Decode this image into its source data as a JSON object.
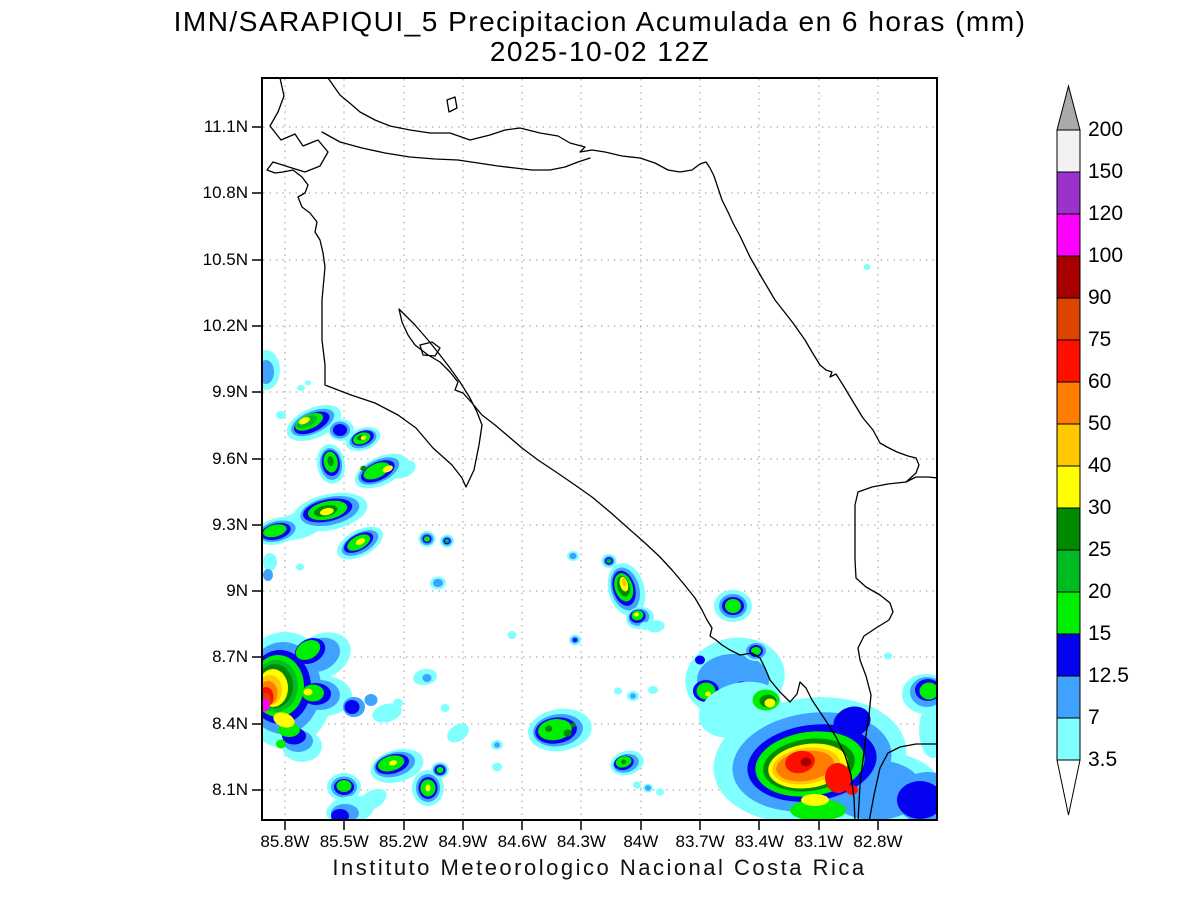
{
  "title": {
    "line1": "IMN/SARAPIQUI_5 Precipitacion Acumulada en 6 horas (mm)",
    "line2": "2025-10-02 12Z"
  },
  "footer": "Instituto Meteorologico Nacional Costa Rica",
  "axes": {
    "lat_labels": [
      "11.1N",
      "10.8N",
      "10.5N",
      "10.2N",
      "9.9N",
      "9.6N",
      "9.3N",
      "9N",
      "8.7N",
      "8.4N",
      "8.1N"
    ],
    "lon_labels": [
      "85.8W",
      "85.5W",
      "85.2W",
      "84.9W",
      "84.6W",
      "84.3W",
      "84W",
      "83.7W",
      "83.4W",
      "83.1W",
      "82.8W"
    ]
  },
  "colorbar": {
    "units": "mm",
    "levels": [
      "200",
      "150",
      "120",
      "100",
      "90",
      "75",
      "60",
      "50",
      "40",
      "30",
      "25",
      "20",
      "15",
      "12.5",
      "7",
      "3.5"
    ],
    "band_colors": [
      "#F2F2F2",
      "#9933CC",
      "#FF00FF",
      "#A80000",
      "#DD4400",
      "#FF0F00",
      "#FF7D00",
      "#FFC800",
      "#FFFF00",
      "#008A00",
      "#00BB22",
      "#00EE00",
      "#0502F0",
      "#41A1FF",
      "#80FFFF"
    ],
    "overflow_top_color": "#AAAAAA",
    "overflow_bottom_color": "#FFFFFF"
  },
  "palette_mm": {
    "3.5": "#80FFFF",
    "7": "#41A1FF",
    "12.5": "#0502F0",
    "15": "#00EE00",
    "20": "#00BB22",
    "25": "#008A00",
    "30": "#FFFF00",
    "40": "#FFC800",
    "50": "#FF7D00",
    "60": "#FF0F00",
    "75": "#DD4400",
    "90": "#A80000",
    "100": "#FF00FF",
    "120": "#9933CC",
    "150": "#F2F2F2"
  }
}
